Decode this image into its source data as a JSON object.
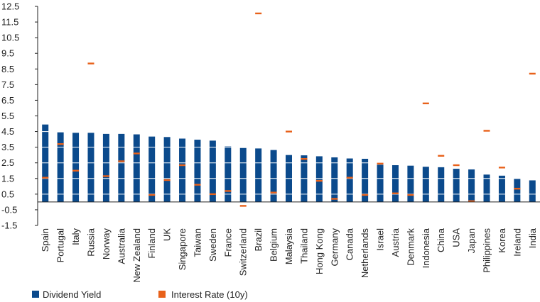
{
  "chart_data": {
    "type": "bar",
    "title": "",
    "xlabel": "",
    "ylabel": "",
    "ylim": [
      -1.5,
      12.5
    ],
    "yticks": [
      "12.5",
      "11.5",
      "10.5",
      "9.5",
      "8.5",
      "7.5",
      "6.5",
      "5.5",
      "4.5",
      "3.5",
      "2.5",
      "1.5",
      "0.5",
      "-0.5",
      "-1.5"
    ],
    "ytick_values": [
      12.5,
      11.5,
      10.5,
      9.5,
      8.5,
      7.5,
      6.5,
      5.5,
      4.5,
      3.5,
      2.5,
      1.5,
      0.5,
      -0.5,
      -1.5
    ],
    "grid": "horizontal white lines through bars",
    "legend_position": "bottom-left",
    "categories": [
      "Spain",
      "Portugal",
      "Italy",
      "Russia",
      "Norway",
      "Australia",
      "New Zealand",
      "Finland",
      "UK",
      "Singapore",
      "Taiwan",
      "Sweden",
      "France",
      "Switzerland",
      "Brazil",
      "Belgium",
      "Malaysia",
      "Thailand",
      "Hong Kong",
      "Germany",
      "Canada",
      "Netherlands",
      "Israel",
      "Austria",
      "Denmark",
      "Indonesia",
      "China",
      "USA",
      "Japan",
      "Philippines",
      "Korea",
      "Ireland",
      "India"
    ],
    "series": [
      {
        "name": "Dividend Yield",
        "kind": "bar",
        "color": "#0b4a8c",
        "values": [
          4.95,
          4.45,
          4.42,
          4.42,
          4.35,
          4.35,
          4.32,
          4.18,
          4.15,
          4.05,
          3.98,
          3.92,
          3.55,
          3.45,
          3.42,
          3.32,
          3.0,
          2.98,
          2.92,
          2.85,
          2.78,
          2.76,
          2.38,
          2.35,
          2.32,
          2.25,
          2.22,
          2.12,
          2.08,
          1.75,
          1.68,
          1.48,
          1.38
        ]
      },
      {
        "name": "Interest Rate (10y)",
        "kind": "marker",
        "color": "#e8611a",
        "values": [
          1.55,
          3.7,
          2.0,
          8.85,
          1.65,
          2.6,
          3.1,
          0.45,
          1.4,
          2.35,
          1.1,
          0.5,
          0.7,
          -0.25,
          12.05,
          0.6,
          4.5,
          2.75,
          1.35,
          0.2,
          1.55,
          0.45,
          2.45,
          0.55,
          0.45,
          6.3,
          2.95,
          2.35,
          0.05,
          4.55,
          2.2,
          0.85,
          8.2
        ]
      }
    ]
  }
}
